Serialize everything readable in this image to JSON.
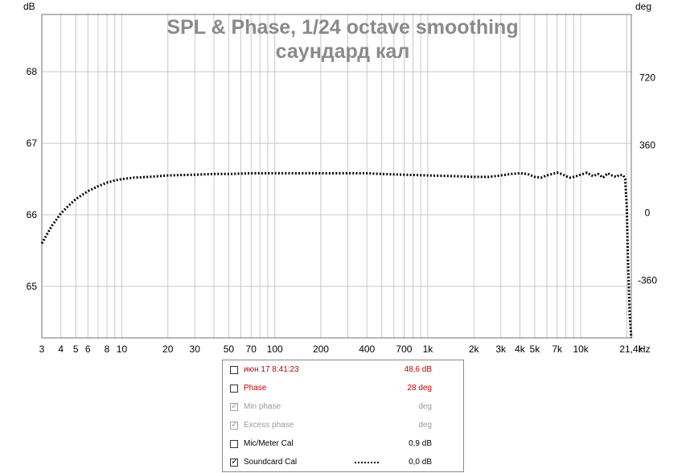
{
  "chart_data": {
    "type": "line",
    "title": "SPL & Phase, 1/24 octave smoothing",
    "subtitle": "саундард кал",
    "ylabel_left": "dB",
    "ylabel_right": "deg",
    "xunit": "Hz",
    "xscale": "log",
    "xlim": [
      3,
      21400
    ],
    "ylim": [
      64.28,
      68.8
    ],
    "y2lim": [
      -666,
      1056
    ],
    "grid": true,
    "x_ticks": [
      "3",
      "4",
      "5",
      "6",
      "8",
      "10",
      "20",
      "30",
      "50",
      "70",
      "100",
      "200",
      "400",
      "700",
      "1k",
      "2k",
      "3k",
      "4k",
      "5k",
      "7k",
      "10k",
      "21,4k"
    ],
    "x_tick_values": [
      3,
      4,
      5,
      6,
      8,
      10,
      20,
      30,
      50,
      70,
      100,
      200,
      400,
      700,
      1000,
      2000,
      3000,
      4000,
      5000,
      7000,
      10000,
      21400
    ],
    "y_ticks": [
      "65",
      "66",
      "67",
      "68"
    ],
    "y_tick_values": [
      65,
      66,
      67,
      68
    ],
    "y2_ticks": [
      "720",
      "360",
      "0",
      "-360"
    ],
    "y2_tick_values": [
      720,
      360,
      0,
      -360
    ],
    "series": [
      {
        "name": "Soundcard Cal",
        "style": "dotted",
        "color": "#000000",
        "x": [
          3,
          3.5,
          4,
          4.5,
          5,
          6,
          7,
          8,
          9,
          10,
          12,
          15,
          20,
          30,
          40,
          50,
          70,
          100,
          150,
          200,
          300,
          400,
          500,
          700,
          1000,
          1500,
          2000,
          2500,
          3000,
          3500,
          4000,
          4500,
          5000,
          5500,
          6000,
          6500,
          7000,
          7500,
          8000,
          8500,
          9000,
          10000,
          11000,
          12000,
          13000,
          14000,
          15000,
          16000,
          17000,
          18000,
          19000,
          19500,
          20000,
          20300,
          20600,
          20900,
          21200,
          21400
        ],
        "y": [
          65.6,
          65.85,
          66.02,
          66.13,
          66.22,
          66.33,
          66.4,
          66.45,
          66.48,
          66.5,
          66.52,
          66.53,
          66.55,
          66.56,
          66.57,
          66.57,
          66.58,
          66.58,
          66.58,
          66.58,
          66.58,
          66.58,
          66.57,
          66.56,
          66.55,
          66.54,
          66.53,
          66.53,
          66.55,
          66.57,
          66.58,
          66.57,
          66.53,
          66.52,
          66.55,
          66.57,
          66.59,
          66.57,
          66.54,
          66.52,
          66.53,
          66.56,
          66.59,
          66.54,
          66.57,
          66.52,
          66.58,
          66.55,
          66.53,
          66.56,
          66.55,
          66.5,
          66.1,
          65.5,
          65.0,
          64.6,
          64.4,
          64.28
        ]
      }
    ]
  },
  "legend": {
    "rows": [
      {
        "label": "июн 17 8:41:23",
        "value": "48,6 dB",
        "checked": false,
        "state": "red"
      },
      {
        "label": "Phase",
        "value": "28 deg",
        "checked": false,
        "state": "red"
      },
      {
        "label": "Min phase",
        "value": "deg",
        "checked": true,
        "state": "disabled"
      },
      {
        "label": "Excess phase",
        "value": "deg",
        "checked": true,
        "state": "disabled"
      },
      {
        "label": "Mic/Meter Cal",
        "value": "0,9 dB",
        "checked": false,
        "state": "normal"
      },
      {
        "label": "Soundcard Cal",
        "value": "0,0 dB",
        "checked": true,
        "state": "normal",
        "swatch": "dotted"
      }
    ]
  }
}
